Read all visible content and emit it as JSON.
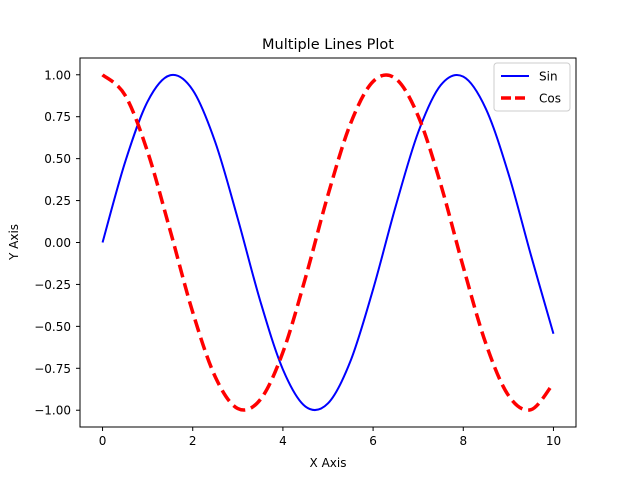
{
  "chart_data": {
    "type": "line",
    "title": "Multiple Lines Plot",
    "xlabel": "X Axis",
    "ylabel": "Y Axis",
    "xlim": [
      -0.5,
      10.5
    ],
    "ylim": [
      -1.1,
      1.1
    ],
    "xticks": [
      0,
      2,
      4,
      6,
      8,
      10
    ],
    "xtick_labels": [
      "0",
      "2",
      "4",
      "6",
      "8",
      "10"
    ],
    "yticks": [
      -1.0,
      -0.75,
      -0.5,
      -0.25,
      0.0,
      0.25,
      0.5,
      0.75,
      1.0
    ],
    "ytick_labels": [
      "−1.00",
      "−0.75",
      "−0.50",
      "−0.25",
      "0.00",
      "0.25",
      "0.50",
      "0.75",
      "1.00"
    ],
    "grid": false,
    "legend_position": "upper right",
    "x": [
      0,
      0.5,
      1,
      1.5,
      2,
      2.5,
      3,
      3.5,
      4,
      4.5,
      5,
      5.5,
      6,
      6.5,
      7,
      7.5,
      8,
      8.5,
      9,
      9.5,
      10
    ],
    "series": [
      {
        "name": "Sin",
        "color": "#0000ff",
        "line_style": "solid",
        "values": [
          0.0,
          0.479,
          0.841,
          0.997,
          0.909,
          0.598,
          0.141,
          -0.351,
          -0.757,
          -0.978,
          -0.959,
          -0.706,
          -0.279,
          0.215,
          0.657,
          0.938,
          0.989,
          0.798,
          0.412,
          -0.075,
          -0.544
        ]
      },
      {
        "name": "Cos",
        "color": "#ff0000",
        "line_style": "dashed",
        "values": [
          1.0,
          0.878,
          0.54,
          0.071,
          -0.416,
          -0.801,
          -0.99,
          -0.936,
          -0.654,
          -0.211,
          0.284,
          0.709,
          0.96,
          0.977,
          0.754,
          0.347,
          -0.146,
          -0.602,
          -0.911,
          -0.997,
          -0.839
        ]
      }
    ]
  }
}
